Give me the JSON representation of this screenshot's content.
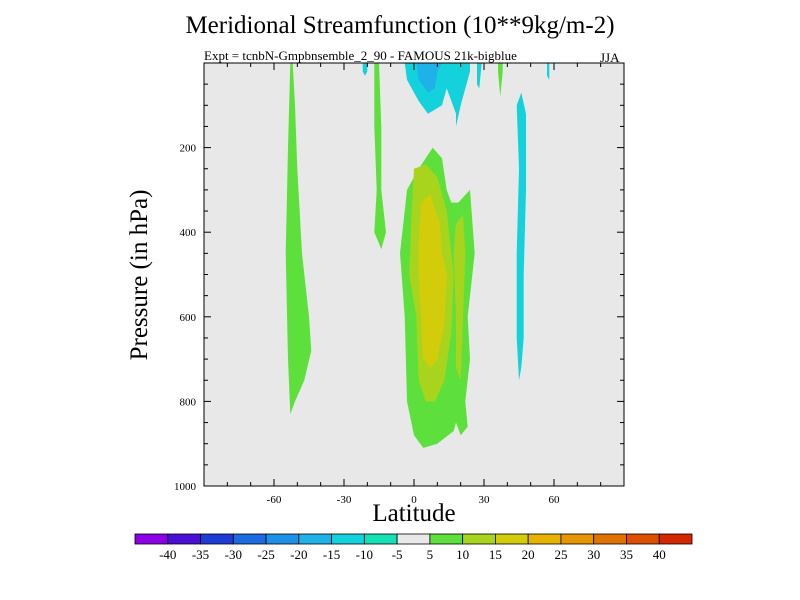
{
  "chart_data": {
    "type": "heatmap",
    "title": "Meridional Streamfunction (10**9kg/m-2)",
    "subtitle": "Expt = tcnbN-Gmpbnsemble_2_90 - FAMOUS 21k-bigblue",
    "season": "JJA",
    "xlabel": "Latitude",
    "ylabel": "Pressure (in hPa)",
    "xlim": [
      -90,
      90
    ],
    "ylim": [
      1000,
      0
    ],
    "x_ticks": [
      -60,
      -30,
      0,
      30,
      60
    ],
    "y_ticks": [
      200,
      400,
      600,
      800,
      1000
    ],
    "grid": false,
    "background_color": "#e8e8e8",
    "contour_levels": [
      -40,
      -35,
      -30,
      -25,
      -20,
      -15,
      -10,
      -5,
      5,
      10,
      15,
      20,
      25,
      30,
      35,
      40
    ],
    "colorbar_labels": [
      "-40",
      "-35",
      "-30",
      "-25",
      "-20",
      "-15",
      "-10",
      "-5",
      "5",
      "10",
      "15",
      "20",
      "25",
      "30",
      "35",
      "40"
    ],
    "colorbar_colors": [
      "#8c00e6",
      "#4a0fd4",
      "#1f3bd6",
      "#1e6be0",
      "#1e90e8",
      "#1eb2e8",
      "#14d2dc",
      "#14e0b4",
      "#e8e8e8",
      "#5ee03c",
      "#a8d41e",
      "#d2cc0a",
      "#e6b400",
      "#e69600",
      "#e07300",
      "#dc5000",
      "#d42800"
    ],
    "regions": [
      {
        "name": "sh-positive-lobe",
        "value_band": "5-10",
        "color": "#5ee03c",
        "points": [
          [
            -52,
            0
          ],
          [
            -51,
            100
          ],
          [
            -50,
            250
          ],
          [
            -48,
            450
          ],
          [
            -45,
            600
          ],
          [
            -44,
            680
          ],
          [
            -47,
            750
          ],
          [
            -51,
            800
          ],
          [
            -53,
            830
          ],
          [
            -54,
            700
          ],
          [
            -55,
            450
          ],
          [
            -54,
            200
          ],
          [
            -53,
            0
          ]
        ]
      },
      {
        "name": "upper-thin-positive",
        "value_band": "5-10",
        "color": "#5ee03c",
        "points": [
          [
            -15,
            0
          ],
          [
            -14,
            150
          ],
          [
            -14,
            300
          ],
          [
            -12,
            400
          ],
          [
            -14,
            440
          ],
          [
            -17,
            400
          ],
          [
            -16,
            300
          ],
          [
            -17,
            150
          ],
          [
            -17,
            0
          ]
        ]
      },
      {
        "name": "tropical-positive",
        "value_band": "5-10",
        "color": "#5ee03c",
        "points": [
          [
            -3,
            300
          ],
          [
            2,
            250
          ],
          [
            8,
            200
          ],
          [
            12,
            225
          ],
          [
            14,
            300
          ],
          [
            16,
            330
          ],
          [
            19,
            330
          ],
          [
            24,
            300
          ],
          [
            26,
            450
          ],
          [
            23,
            600
          ],
          [
            24,
            700
          ],
          [
            22,
            800
          ],
          [
            23,
            860
          ],
          [
            20,
            880
          ],
          [
            18,
            850
          ],
          [
            17,
            870
          ],
          [
            10,
            900
          ],
          [
            4,
            910
          ],
          [
            0,
            880
          ],
          [
            -3,
            800
          ],
          [
            -4,
            600
          ],
          [
            -6,
            450
          ],
          [
            -4,
            350
          ]
        ]
      },
      {
        "name": "tropical-core-outer",
        "value_band": "10-15",
        "color": "#a8d41e",
        "points": [
          [
            0,
            250
          ],
          [
            5,
            240
          ],
          [
            10,
            270
          ],
          [
            14,
            350
          ],
          [
            15,
            400
          ],
          [
            17,
            500
          ],
          [
            16,
            640
          ],
          [
            13,
            750
          ],
          [
            9,
            800
          ],
          [
            5,
            800
          ],
          [
            2,
            750
          ],
          [
            1,
            600
          ],
          [
            -2,
            500
          ],
          [
            -1,
            350
          ]
        ]
      },
      {
        "name": "tropical-core-inner",
        "value_band": "15-20",
        "color": "#d2cc0a",
        "points": [
          [
            3,
            330
          ],
          [
            7,
            310
          ],
          [
            11,
            380
          ],
          [
            12,
            450
          ],
          [
            14,
            500
          ],
          [
            13,
            620
          ],
          [
            10,
            700
          ],
          [
            7,
            720
          ],
          [
            4,
            700
          ],
          [
            3,
            600
          ],
          [
            2,
            500
          ],
          [
            2,
            420
          ]
        ]
      },
      {
        "name": "nh-side-positive",
        "value_band": "10-15",
        "color": "#a8d41e",
        "points": [
          [
            18,
            380
          ],
          [
            21,
            360
          ],
          [
            22,
            450
          ],
          [
            21,
            600
          ],
          [
            20,
            750
          ],
          [
            18,
            720
          ],
          [
            18,
            600
          ],
          [
            17,
            450
          ]
        ]
      },
      {
        "name": "top-small-positive",
        "value_band": "5-10",
        "color": "#5ee03c",
        "points": [
          [
            36,
            0
          ],
          [
            36,
            20
          ],
          [
            37,
            80
          ],
          [
            38,
            20
          ],
          [
            38,
            0
          ]
        ]
      },
      {
        "name": "nh-negative-lobe",
        "value_band": "-10--5",
        "color": "#14d2dc",
        "points": [
          [
            44,
            100
          ],
          [
            46,
            70
          ],
          [
            48,
            120
          ],
          [
            48,
            300
          ],
          [
            47,
            500
          ],
          [
            47,
            650
          ],
          [
            46,
            720
          ],
          [
            45,
            750
          ],
          [
            44,
            650
          ],
          [
            44,
            450
          ],
          [
            45,
            250
          ]
        ]
      },
      {
        "name": "upper-neg-a",
        "value_band": "-10--5",
        "color": "#14d2dc",
        "points": [
          [
            -22,
            0
          ],
          [
            -22,
            20
          ],
          [
            -21,
            30
          ],
          [
            -20,
            20
          ],
          [
            -20,
            0
          ]
        ]
      },
      {
        "name": "upper-neg-b",
        "value_band": "-10--5",
        "color": "#14d2dc",
        "points": [
          [
            -4,
            0
          ],
          [
            -3,
            40
          ],
          [
            2,
            90
          ],
          [
            6,
            120
          ],
          [
            12,
            100
          ],
          [
            14,
            60
          ],
          [
            18,
            120
          ],
          [
            18,
            150
          ],
          [
            20,
            100
          ],
          [
            24,
            20
          ],
          [
            24,
            0
          ]
        ]
      },
      {
        "name": "upper-neg-core",
        "value_band": "-15--10",
        "color": "#1eb2e8",
        "points": [
          [
            1,
            0
          ],
          [
            2,
            40
          ],
          [
            6,
            70
          ],
          [
            9,
            60
          ],
          [
            10,
            20
          ],
          [
            12,
            0
          ]
        ]
      },
      {
        "name": "upper-neg-c",
        "value_band": "-10--5",
        "color": "#14d2dc",
        "points": [
          [
            27,
            0
          ],
          [
            27,
            50
          ],
          [
            28,
            60
          ],
          [
            29,
            0
          ]
        ]
      },
      {
        "name": "upper-neg-d",
        "value_band": "-10--5",
        "color": "#14d2dc",
        "points": [
          [
            57,
            0
          ],
          [
            57,
            30
          ],
          [
            58,
            40
          ],
          [
            58,
            0
          ]
        ]
      }
    ]
  }
}
